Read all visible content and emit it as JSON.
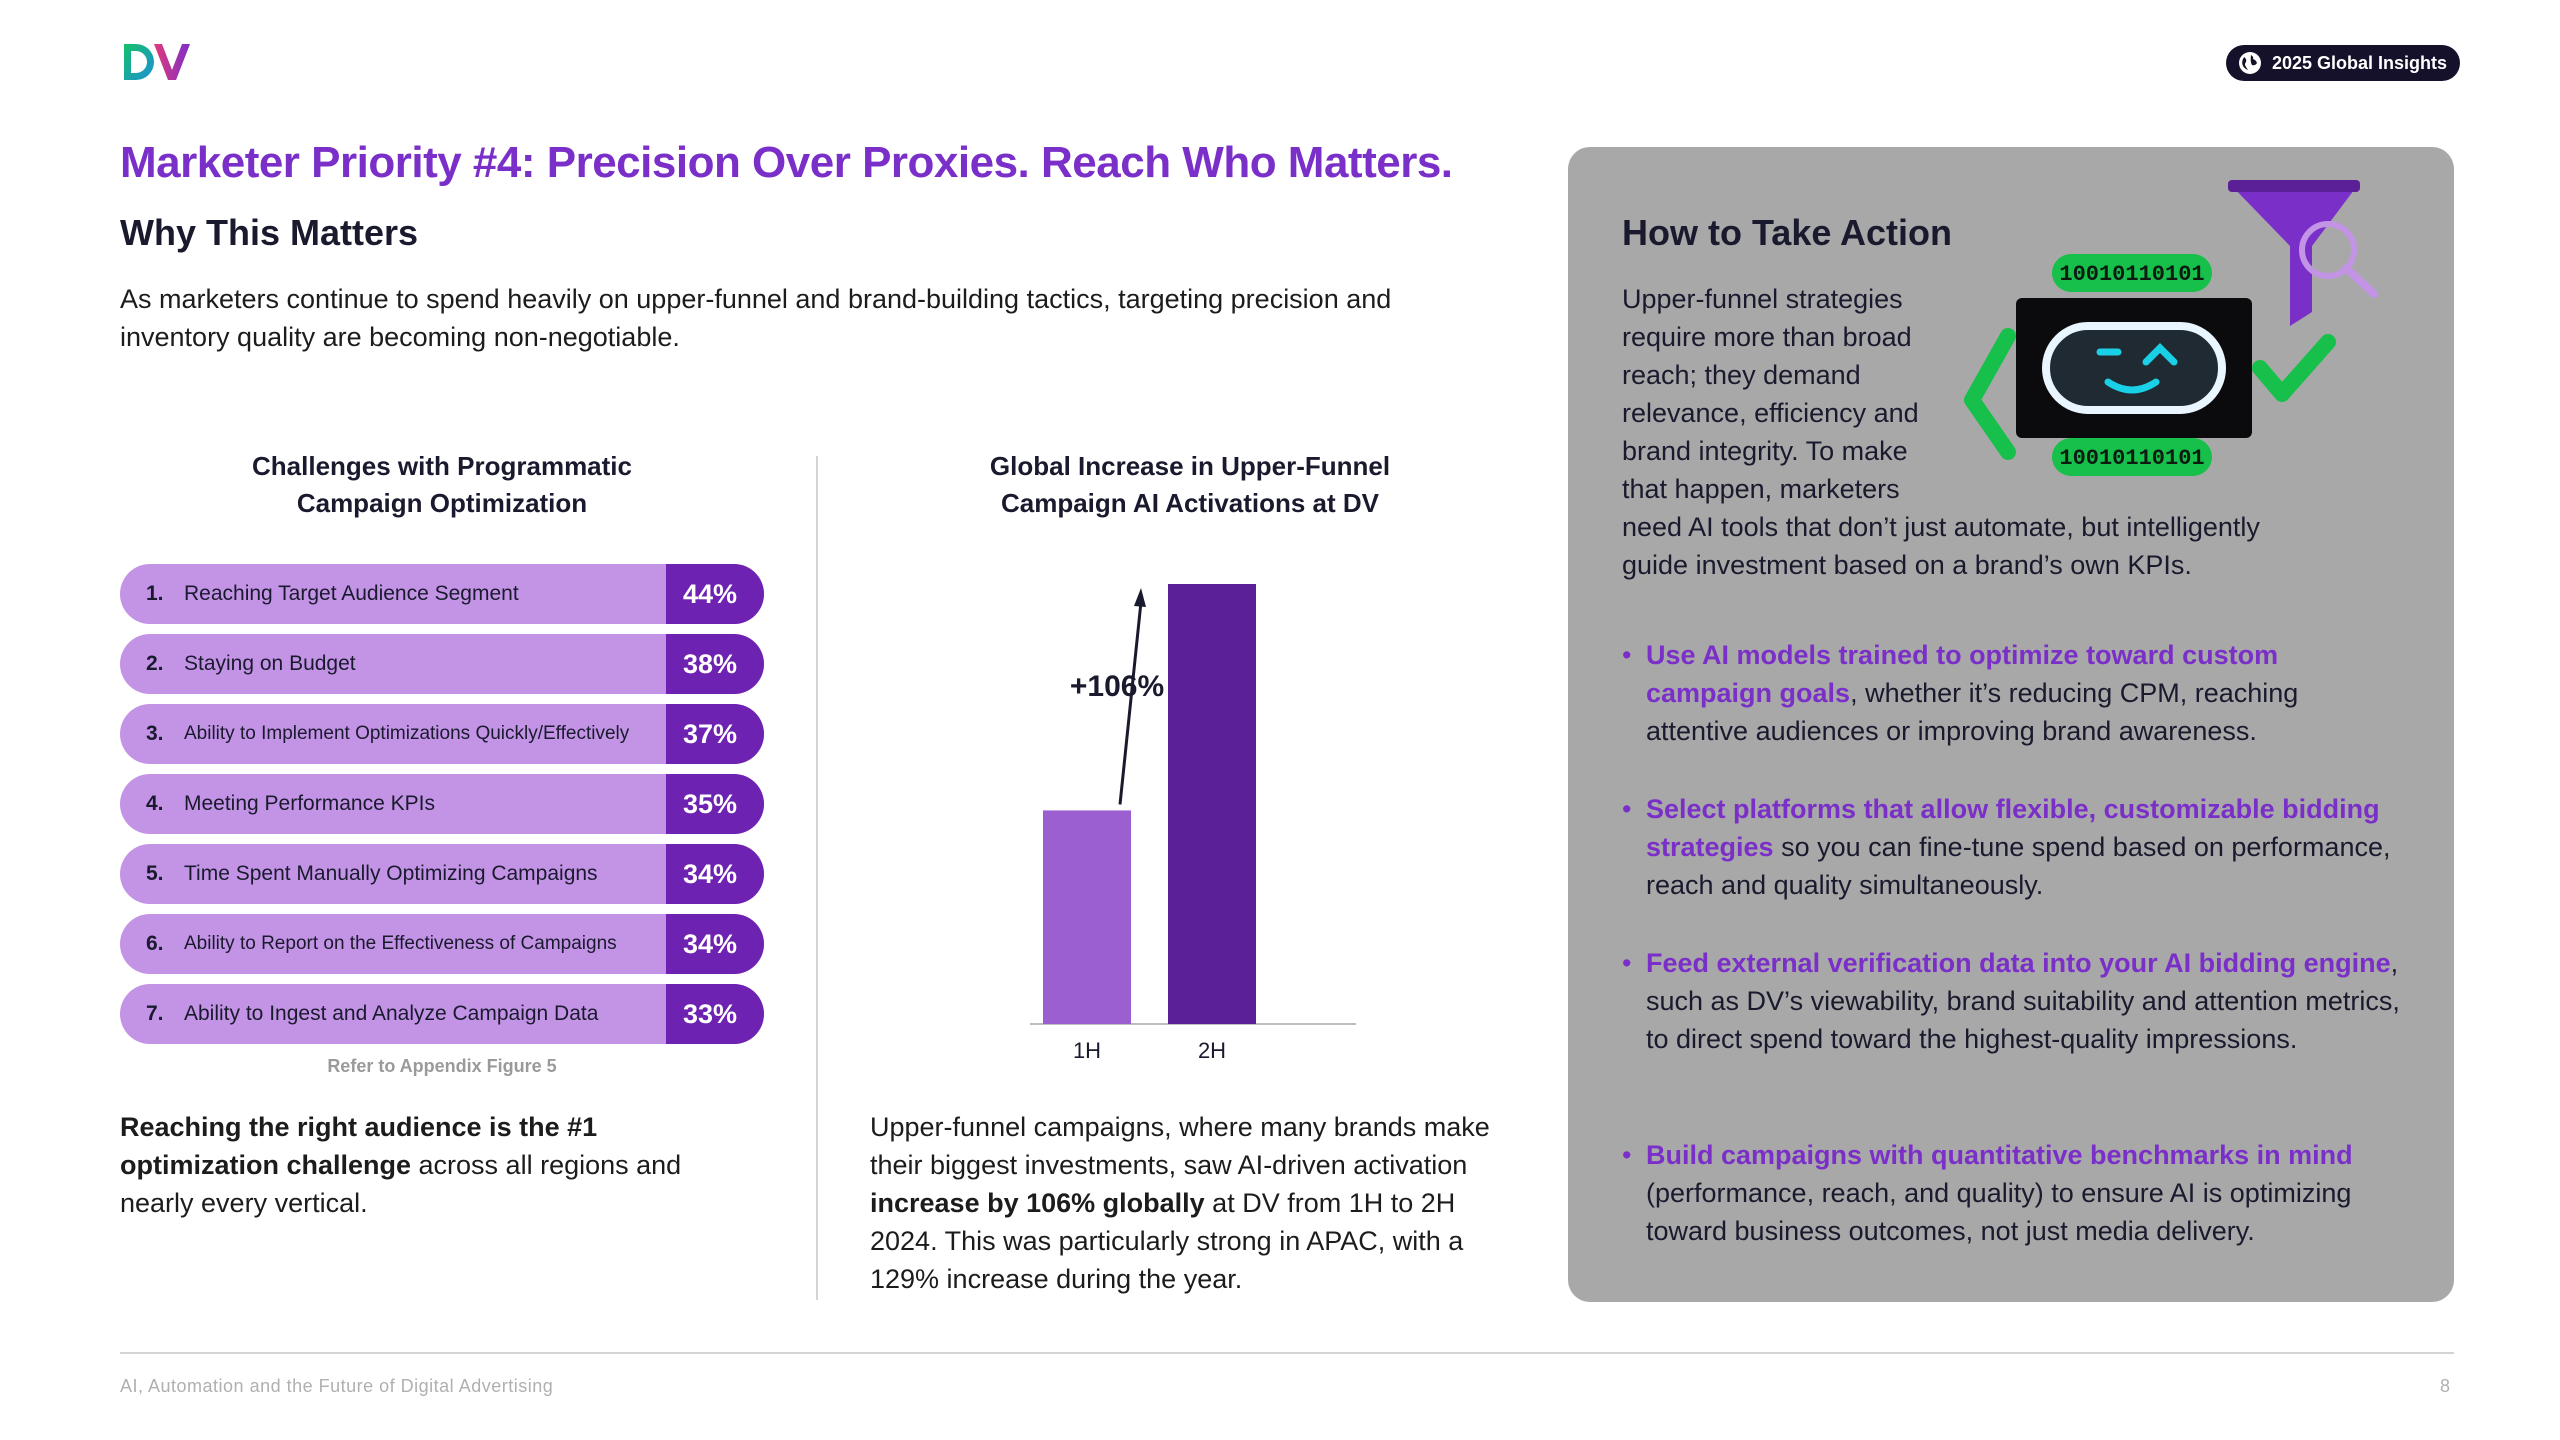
{
  "header": {
    "logo_text": "DV",
    "badge_label": "2025 Global Insights"
  },
  "title": "Marketer Priority #4: Precision Over Proxies. Reach Who Matters.",
  "why": {
    "heading": "Why This Matters",
    "text": "As marketers continue to spend heavily on upper-funnel and brand-building tactics, targeting precision and inventory quality are becoming non-negotiable."
  },
  "challenges": {
    "title_line1": "Challenges with Programmatic",
    "title_line2": "Campaign Optimization",
    "items": [
      {
        "num": "1.",
        "label": "Reaching Target Audience Segment",
        "pct": "44%"
      },
      {
        "num": "2.",
        "label": "Staying on Budget",
        "pct": "38%"
      },
      {
        "num": "3.",
        "label": "Ability to Implement Optimizations Quickly/Effectively",
        "pct": "37%"
      },
      {
        "num": "4.",
        "label": "Meeting Performance KPIs",
        "pct": "35%"
      },
      {
        "num": "5.",
        "label": "Time Spent Manually Optimizing Campaigns",
        "pct": "34%"
      },
      {
        "num": "6.",
        "label": "Ability to Report on the Effectiveness of Campaigns",
        "pct": "34%"
      },
      {
        "num": "7.",
        "label": "Ability to Ingest and Analyze Campaign Data",
        "pct": "33%"
      }
    ],
    "footnote": "Refer to Appendix Figure 5",
    "summary_bold": "Reaching the right audience is the #1 optimization challenge",
    "summary_rest": " across all regions and nearly every vertical."
  },
  "chart_data": {
    "type": "bar",
    "title_line1": "Global Increase in Upper-Funnel",
    "title_line2": "Campaign AI Activations at DV",
    "categories": [
      "1H",
      "2H"
    ],
    "values": [
      1.0,
      2.06
    ],
    "annotation": "+106%",
    "colors": [
      "#9b5fd1",
      "#5b1f96"
    ],
    "ylim": [
      0,
      2.06
    ]
  },
  "middle": {
    "summary_a": "Upper-funnel campaigns, where many brands make their biggest investments, saw AI-driven activation ",
    "summary_bold": "increase by 106% globally",
    "summary_b": " at DV from 1H to 2H 2024. This was particularly strong in APAC, with a 129% increase during the year."
  },
  "action": {
    "heading": "How to Take Action",
    "intro_lines": [
      "Upper-funnel strategies",
      "require more than broad",
      "reach; they demand",
      "relevance, efficiency and",
      "brand integrity. To make",
      "that happen, marketers",
      "need AI tools that don’t just automate, but intelligently",
      "guide investment based on a brand’s own KPIs."
    ],
    "robot_code_top": "10010110101",
    "robot_code_bottom": "10010110101",
    "bullets": [
      {
        "hl": "Use AI models trained to optimize toward custom campaign goals",
        "rest": ", whether it’s reducing CPM, reaching attentive audiences or improving brand awareness."
      },
      {
        "hl": "Select platforms that allow flexible, customizable bidding strategies",
        "rest": " so you can fine-tune spend based on performance, reach and quality simultaneously."
      },
      {
        "hl": "Feed external verification data into your AI bidding engine",
        "rest": ", such as DV’s viewability, brand suitability and attention metrics, to direct spend toward the highest-quality impressions."
      },
      {
        "hl": "Build campaigns with quantitative benchmarks in mind",
        "rest": " (performance, reach, and quality) to ensure AI is optimizing toward business outcomes, not just media delivery."
      }
    ]
  },
  "footer": {
    "text": "AI, Automation and the Future of Digital Advertising",
    "page": "8"
  },
  "colors": {
    "accent_purple": "#7b2fc9",
    "bar_light": "#c394e6",
    "bar_dark": "#6d22b1",
    "panel_gray": "#a8a8a8",
    "badge_bg": "#15112b"
  }
}
